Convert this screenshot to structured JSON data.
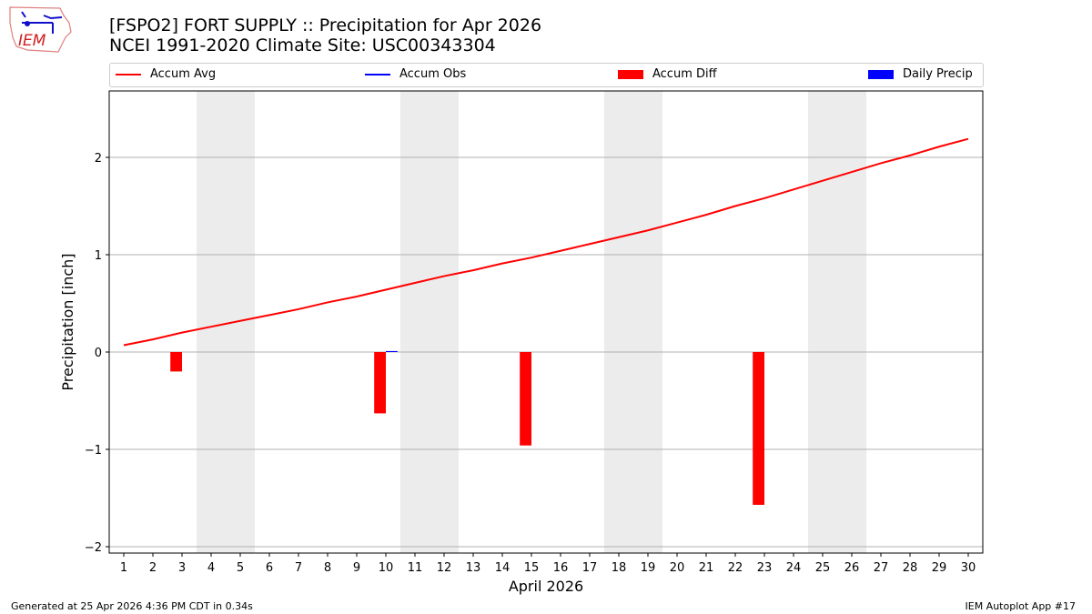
{
  "header": {
    "title": "[FSPO2] FORT SUPPLY :: Precipitation for Apr 2026",
    "subtitle": "NCEI 1991-2020 Climate Site: USC00343304",
    "logo_text": "IEM"
  },
  "footer": {
    "left": "Generated at 25 Apr 2026 4:36 PM CDT in 0.34s",
    "right": "IEM Autoplot App #17"
  },
  "chart_data": {
    "type": "bar",
    "title": "[FSPO2] FORT SUPPLY :: Precipitation for Apr 2026",
    "xlabel": "April 2026",
    "ylabel": "Precipitation [inch]",
    "xlim": [
      0.5,
      31
    ],
    "ylim": [
      -2.07,
      2.68
    ],
    "x": [
      1,
      2,
      3,
      4,
      5,
      6,
      7,
      8,
      9,
      10,
      11,
      12,
      13,
      14,
      15,
      16,
      17,
      18,
      19,
      20,
      21,
      22,
      23,
      24,
      25,
      26,
      27,
      28,
      29,
      30
    ],
    "yticks": [
      -2,
      -1,
      0,
      1,
      2
    ],
    "ytick_labels": [
      "−2",
      "−1",
      "0",
      "1",
      "2"
    ],
    "grid": "y",
    "weekend_bands": [
      [
        3.5,
        5.5
      ],
      [
        10.5,
        12.5
      ],
      [
        17.5,
        19.5
      ],
      [
        24.5,
        26.5
      ]
    ],
    "legend": {
      "placement": "top",
      "entries": [
        {
          "label": "Accum Avg",
          "kind": "line",
          "color": "#ff0000"
        },
        {
          "label": "Accum Obs",
          "kind": "line",
          "color": "#0000ff"
        },
        {
          "label": "Accum Diff",
          "kind": "box",
          "color": "#ff0000"
        },
        {
          "label": "Daily Precip",
          "kind": "box",
          "color": "#0000ff"
        }
      ]
    },
    "series": [
      {
        "name": "Accum Avg",
        "type": "line",
        "color": "#ff0000",
        "values": [
          0.07,
          0.13,
          0.2,
          0.26,
          0.32,
          0.38,
          0.44,
          0.51,
          0.57,
          0.64,
          0.71,
          0.78,
          0.84,
          0.91,
          0.97,
          1.04,
          1.11,
          1.18,
          1.25,
          1.33,
          1.41,
          1.5,
          1.58,
          1.67,
          1.76,
          1.85,
          1.94,
          2.02,
          2.11,
          2.19
        ]
      },
      {
        "name": "Accum Diff",
        "type": "bar",
        "color": "#ff0000",
        "points": [
          {
            "day": 3,
            "value": -0.2
          },
          {
            "day": 10,
            "value": -0.63
          },
          {
            "day": 15,
            "value": -0.96
          },
          {
            "day": 23,
            "value": -1.57
          }
        ]
      },
      {
        "name": "Daily Precip",
        "type": "bar",
        "color": "#0000ff",
        "points": [
          {
            "day": 10,
            "value": 0.01
          }
        ]
      }
    ]
  }
}
